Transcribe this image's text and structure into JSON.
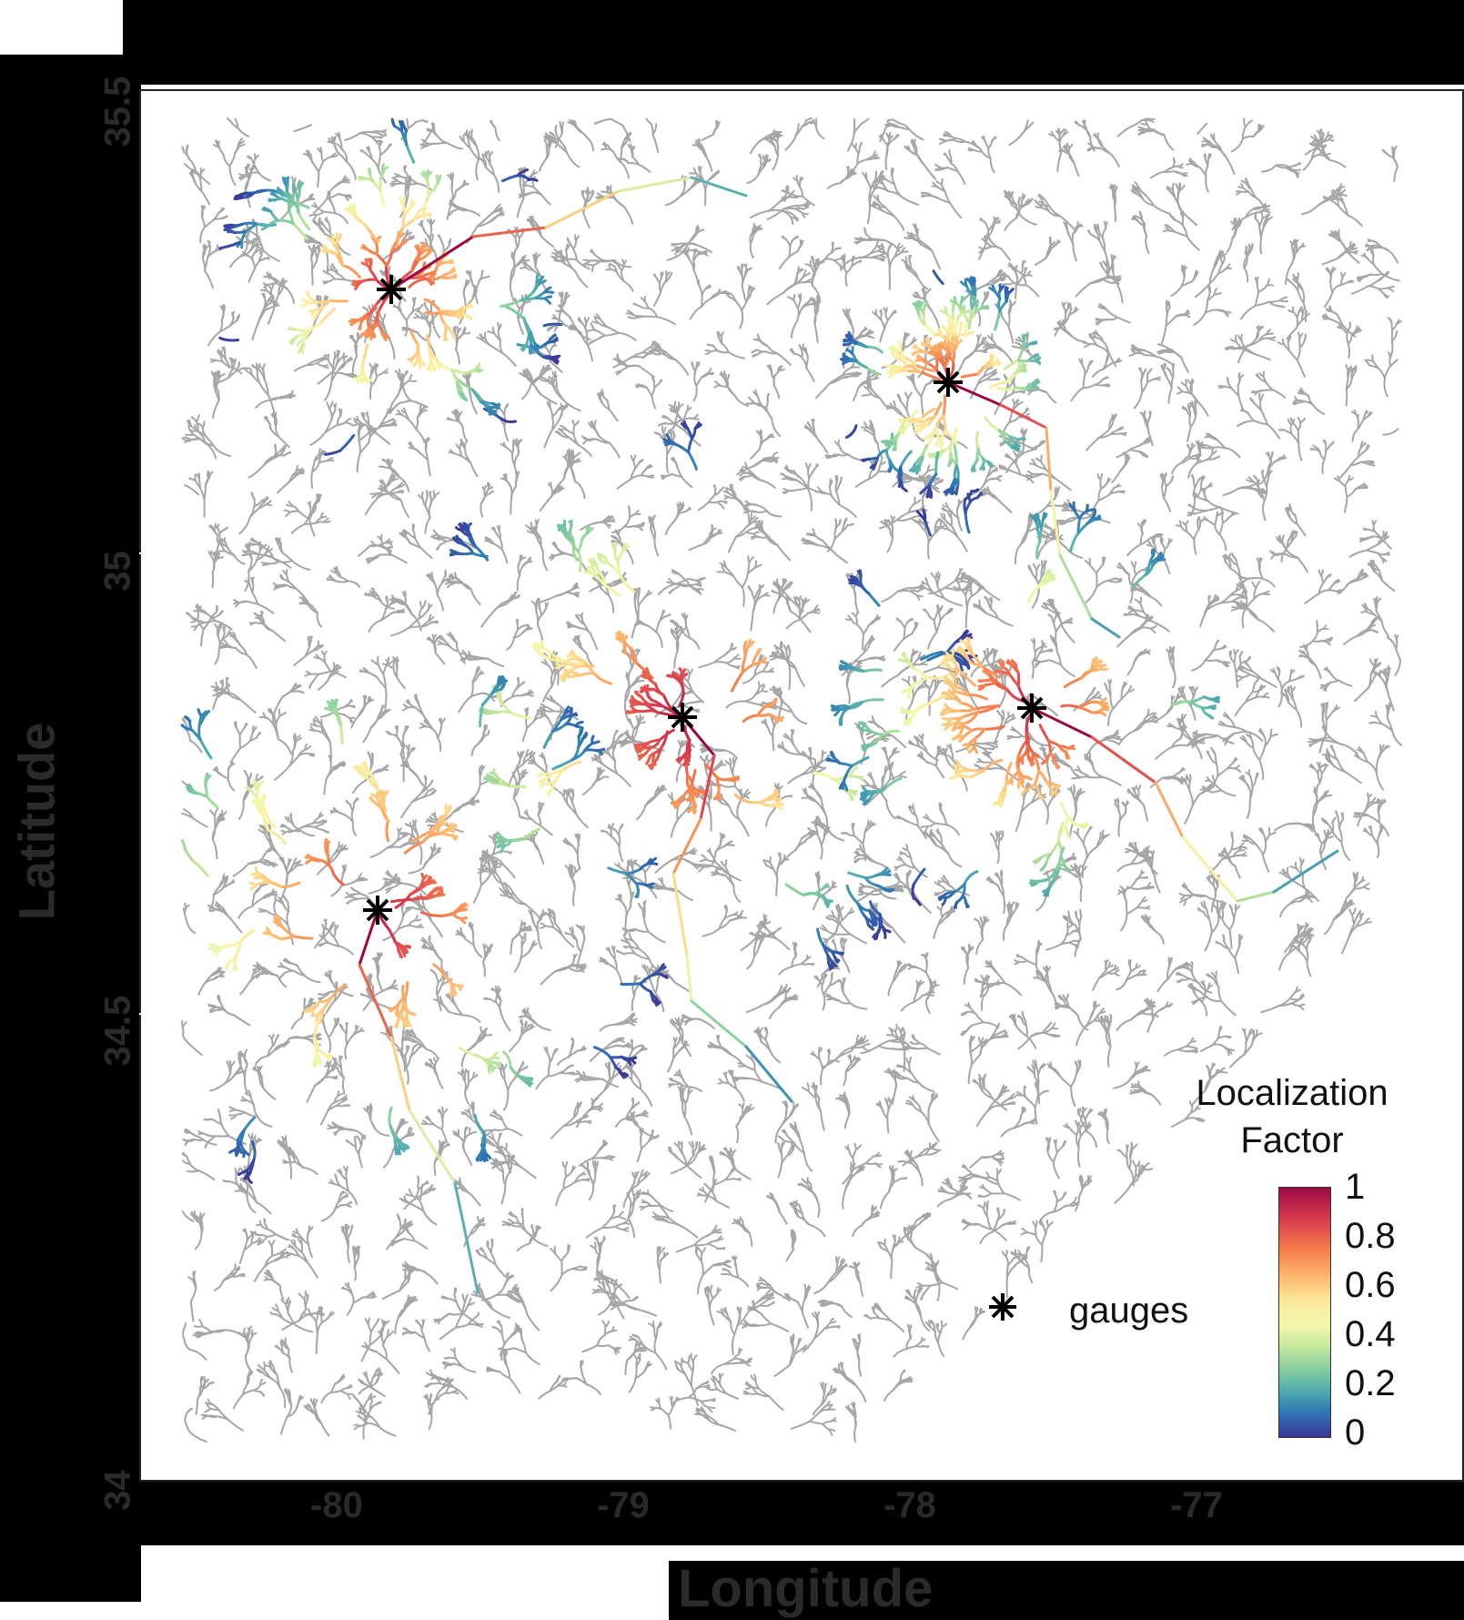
{
  "map": {
    "title": "",
    "x_axis_label": "Longitude",
    "y_axis_label": "Latitude",
    "x_ticks": [
      "-80",
      "-79",
      "-78",
      "-77"
    ],
    "y_ticks": [
      "35.5",
      "35",
      "34.5",
      "34"
    ],
    "legend": {
      "marker": "*",
      "label": "gauges"
    },
    "colorbar": {
      "title_line1": "Localization",
      "title_line2": "Factor",
      "ticks": [
        "1",
        "0.8",
        "0.6",
        "0.4",
        "0.2",
        "0"
      ],
      "colormap": "spectral",
      "range": [
        0,
        1
      ]
    },
    "colors": {
      "background_rivers": "#a6a6a6",
      "gauge_marker": "#000000"
    }
  }
}
